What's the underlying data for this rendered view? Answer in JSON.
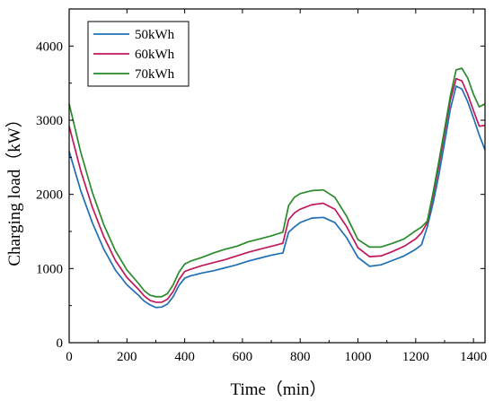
{
  "chart_data": {
    "type": "line",
    "title": "",
    "xlabel": "Time（min）",
    "ylabel": "Charging load（kW）",
    "xlim": [
      0,
      1440
    ],
    "ylim": [
      0,
      4500
    ],
    "xticks": [
      0,
      200,
      400,
      600,
      800,
      1000,
      1200,
      1400
    ],
    "yticks": [
      0,
      1000,
      2000,
      3000,
      4000
    ],
    "grid": false,
    "legend_position": "top-left",
    "series": [
      {
        "name": "50kWh",
        "color": "#1f6fb4",
        "x": [
          0,
          40,
          80,
          120,
          160,
          200,
          240,
          260,
          280,
          300,
          320,
          340,
          360,
          380,
          400,
          420,
          460,
          500,
          540,
          580,
          620,
          660,
          700,
          740,
          760,
          780,
          800,
          840,
          880,
          920,
          960,
          1000,
          1040,
          1080,
          1120,
          1160,
          1200,
          1220,
          1240,
          1260,
          1280,
          1300,
          1320,
          1340,
          1360,
          1380,
          1400,
          1420,
          1440
        ],
        "y": [
          2580,
          2050,
          1620,
          1260,
          980,
          780,
          640,
          560,
          510,
          475,
          480,
          520,
          620,
          770,
          870,
          900,
          940,
          970,
          1010,
          1050,
          1100,
          1140,
          1180,
          1210,
          1490,
          1560,
          1620,
          1680,
          1690,
          1620,
          1420,
          1150,
          1030,
          1050,
          1110,
          1170,
          1260,
          1320,
          1560,
          1880,
          2260,
          2700,
          3150,
          3460,
          3420,
          3250,
          3030,
          2800,
          2600
        ]
      },
      {
        "name": "60kWh",
        "color": "#c1185b",
        "x": [
          0,
          40,
          80,
          120,
          160,
          200,
          240,
          260,
          280,
          300,
          320,
          340,
          360,
          380,
          400,
          420,
          460,
          500,
          540,
          580,
          620,
          660,
          700,
          740,
          760,
          780,
          800,
          840,
          880,
          920,
          960,
          1000,
          1040,
          1080,
          1120,
          1160,
          1200,
          1220,
          1240,
          1260,
          1280,
          1300,
          1320,
          1340,
          1360,
          1380,
          1400,
          1420,
          1440
        ],
        "y": [
          2920,
          2320,
          1830,
          1430,
          1110,
          880,
          720,
          630,
          570,
          545,
          545,
          585,
          690,
          850,
          960,
          990,
          1040,
          1080,
          1120,
          1170,
          1220,
          1260,
          1300,
          1340,
          1660,
          1750,
          1800,
          1860,
          1880,
          1800,
          1570,
          1280,
          1160,
          1170,
          1230,
          1300,
          1400,
          1480,
          1620,
          1980,
          2380,
          2830,
          3270,
          3560,
          3530,
          3350,
          3130,
          2920,
          2930
        ]
      },
      {
        "name": "70kWh",
        "color": "#2a8a2a",
        "x": [
          0,
          40,
          80,
          120,
          160,
          200,
          240,
          260,
          280,
          300,
          320,
          340,
          360,
          380,
          400,
          420,
          460,
          500,
          540,
          580,
          620,
          660,
          700,
          740,
          760,
          780,
          800,
          840,
          880,
          920,
          960,
          1000,
          1040,
          1080,
          1120,
          1160,
          1200,
          1220,
          1240,
          1260,
          1280,
          1300,
          1320,
          1340,
          1360,
          1380,
          1400,
          1420,
          1440
        ],
        "y": [
          3220,
          2570,
          2030,
          1590,
          1240,
          980,
          800,
          700,
          640,
          620,
          620,
          660,
          780,
          950,
          1060,
          1100,
          1150,
          1210,
          1260,
          1300,
          1360,
          1400,
          1440,
          1490,
          1850,
          1960,
          2010,
          2050,
          2060,
          1960,
          1710,
          1390,
          1290,
          1290,
          1340,
          1400,
          1510,
          1560,
          1640,
          2020,
          2440,
          2880,
          3330,
          3680,
          3700,
          3570,
          3350,
          3180,
          3220
        ]
      }
    ]
  }
}
